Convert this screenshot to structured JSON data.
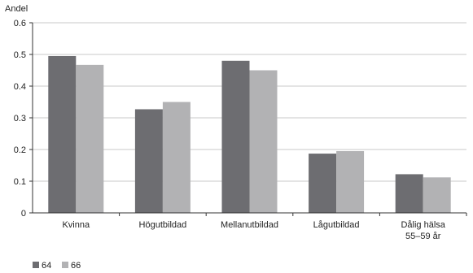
{
  "chart_data": {
    "type": "bar",
    "ylabel": "Andel",
    "ylim": [
      0,
      0.6
    ],
    "yticks": [
      "0",
      "0.1",
      "0.2",
      "0.3",
      "0.4",
      "0.5",
      "0.6"
    ],
    "categories": [
      "Kvinna",
      "Högutbildad",
      "Mellanutbildad",
      "Lågutbildad",
      "Dålig hälsa\n55–59 år"
    ],
    "series": [
      {
        "name": "64",
        "color": "#6d6d71",
        "values": [
          0.495,
          0.327,
          0.48,
          0.187,
          0.122
        ]
      },
      {
        "name": "66",
        "color": "#b2b2b4",
        "values": [
          0.467,
          0.35,
          0.45,
          0.195,
          0.112
        ]
      }
    ],
    "grid": "horizontal",
    "legend": "bottom-left"
  }
}
